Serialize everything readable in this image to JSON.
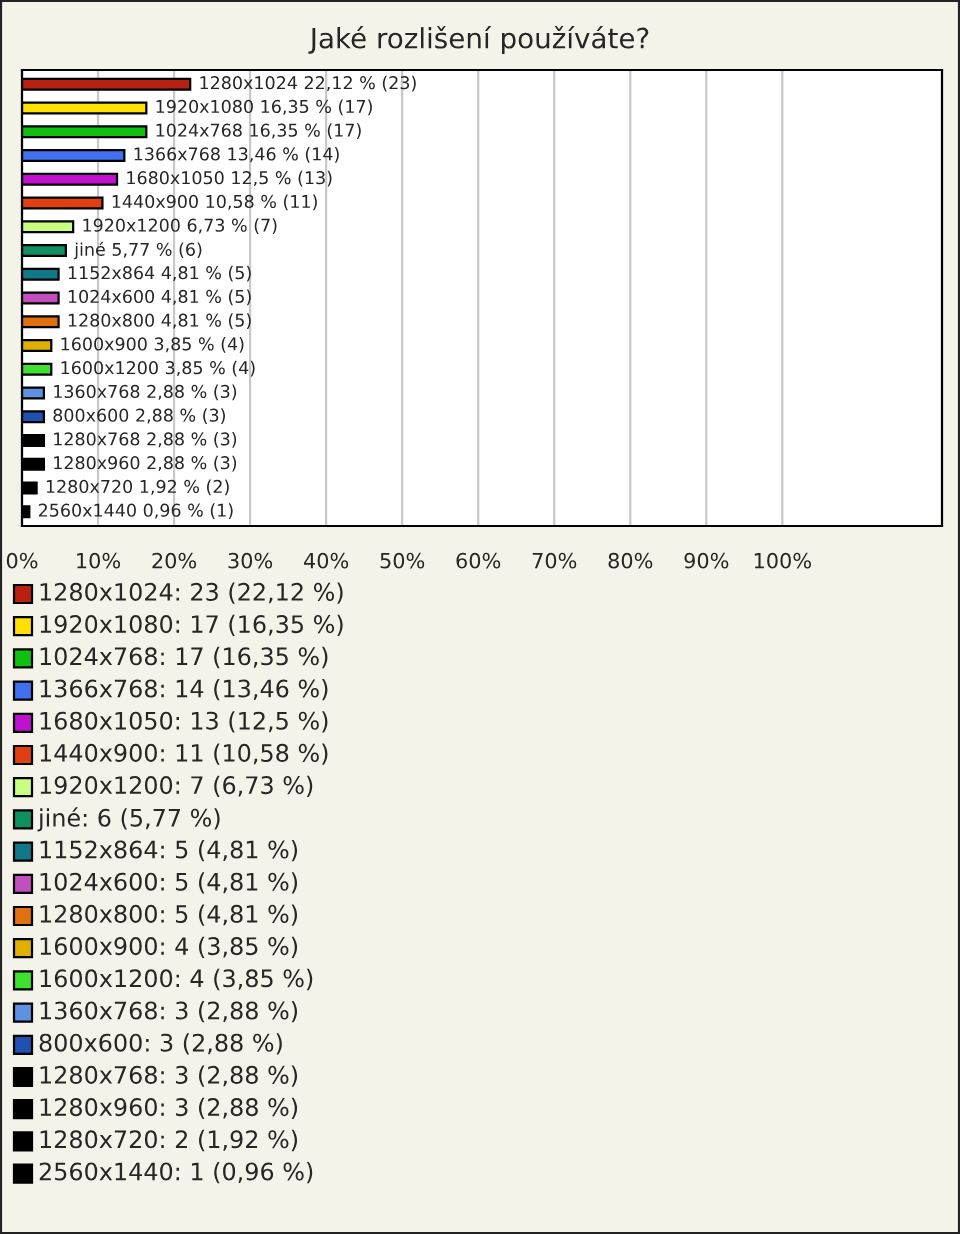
{
  "chart_data": {
    "type": "bar",
    "orientation": "horizontal",
    "title": "Jaké rozlišení používáte?",
    "categories": [
      null,
      null,
      null,
      null,
      null,
      null,
      null,
      null,
      null,
      null,
      null,
      null,
      null,
      null,
      null,
      null,
      null,
      null,
      null
    ],
    "values": [
      22.12,
      16.35,
      16.35,
      13.46,
      12.5,
      10.58,
      6.73,
      5.77,
      4.81,
      4.81,
      4.81,
      3.85,
      3.85,
      2.88,
      2.88,
      2.88,
      2.88,
      1.92,
      0.96
    ],
    "colors": [
      "#b82010",
      "#ffe000",
      "#10c010",
      "#4070f0",
      "#c010d0",
      "#e04010",
      "#c8ff80",
      "#109060",
      "#107888",
      "#c050c0",
      "#e07010",
      "#e0b000",
      "#40e030",
      "#6090e0",
      "#2050b0",
      "#000000",
      "#000000",
      "#000000",
      "#000000"
    ],
    "value_labels": [
      "1280x1024 22,12 % (23)",
      "1920x1080 16,35 % (17)",
      "1024x768 16,35 % (17)",
      "1366x768 13,46 % (14)",
      "1680x1050 12,5 % (13)",
      "1440x900 10,58 % (11)",
      "1920x1200 6,73 % (7)",
      "jiné 5,77 % (6)",
      "1152x864 4,81 % (5)",
      "1024x600 4,81 % (5)",
      "1280x800 4,81 % (5)",
      "1600x900 3,85 % (4)",
      "1600x1200 3,85 % (4)",
      "1360x768 2,88 % (3)",
      "800x600 2,88 % (3)",
      "1280x768 2,88 % (3)",
      "1280x960 2,88 % (3)",
      "1280x720 1,92 % (2)",
      "2560x1440 0,96 % (1)"
    ],
    "xlim": [
      0,
      121
    ],
    "xticks": [
      {
        "value": 0,
        "label": "0%"
      },
      {
        "value": 10,
        "label": "10%"
      },
      {
        "value": 20,
        "label": "20%"
      },
      {
        "value": 30,
        "label": "30%"
      },
      {
        "value": 40,
        "label": "40%"
      },
      {
        "value": 50,
        "label": "50%"
      },
      {
        "value": 60,
        "label": "60%"
      },
      {
        "value": 70,
        "label": "70%"
      },
      {
        "value": 80,
        "label": "80%"
      },
      {
        "value": 90,
        "label": "90%"
      },
      {
        "value": 100,
        "label": "100%"
      }
    ],
    "grid": "x",
    "tick_labels": "x",
    "annotations": [
      "1280x1024: 23 (22,12 %)",
      "1920x1080: 17 (16,35 %)",
      "1024x768: 17 (16,35 %)",
      "1366x768: 14 (13,46 %)",
      "1680x1050: 13 (12,5 %)",
      "1440x900: 11 (10,58 %)",
      "1920x1200: 7 (6,73 %)",
      "jiné: 6 (5,77 %)",
      "1152x864: 5 (4,81 %)",
      "1024x600: 5 (4,81 %)",
      "1280x800: 5 (4,81 %)",
      "1600x900: 4 (3,85 %)",
      "1600x1200: 4 (3,85 %)",
      "1360x768: 3 (2,88 %)",
      "800x600: 3 (2,88 %)",
      "1280x768: 3 (2,88 %)",
      "1280x960: 3 (2,88 %)",
      "1280x720: 2 (1,92 %)",
      "2560x1440: 1 (0,96 %)"
    ]
  }
}
